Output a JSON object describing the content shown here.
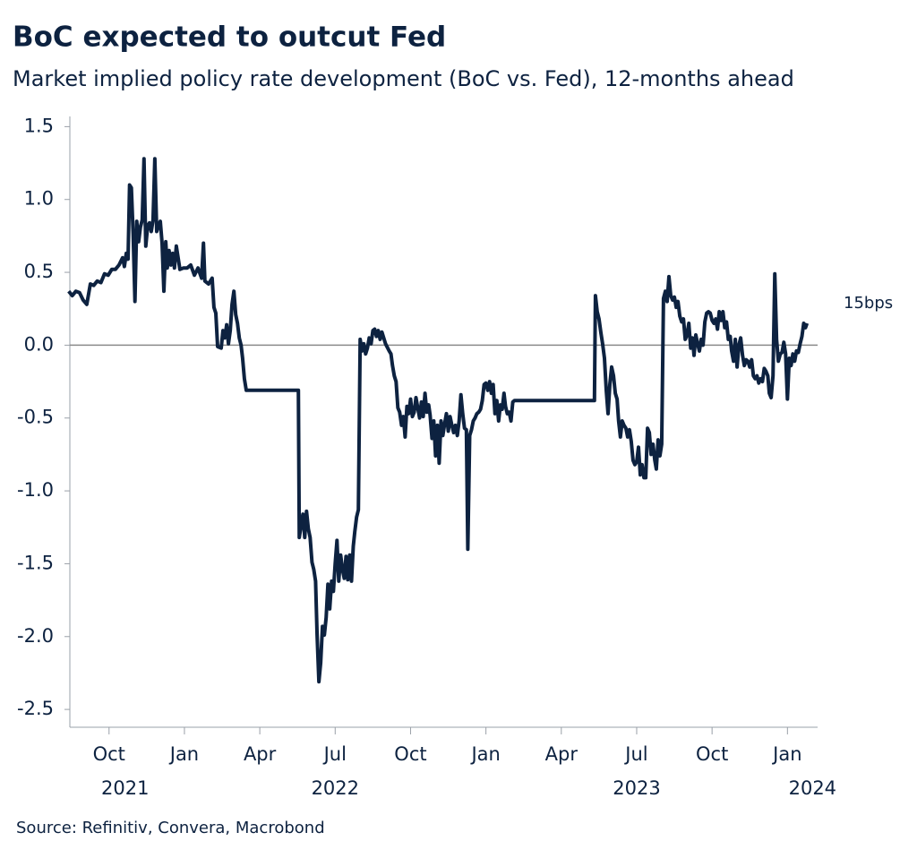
{
  "chart_data": {
    "type": "line",
    "title": "BoC expected to outcut Fed",
    "subtitle": "Market implied policy rate development (BoC vs. Fed), 12-months ahead",
    "source": "Source: Refinitiv, Convera, Macrobond",
    "annotation": "15bps",
    "xlim": [
      2021.62,
      2024.1
    ],
    "ylim": [
      -2.61,
      1.57
    ],
    "xticks": [
      {
        "value": 2021.75,
        "label": "Oct"
      },
      {
        "value": 2022,
        "label": "Jan"
      },
      {
        "value": 2022.25,
        "label": "Apr"
      },
      {
        "value": 2022.5,
        "label": "Jul"
      },
      {
        "value": 2022.75,
        "label": "Oct"
      },
      {
        "value": 2023,
        "label": "Jan"
      },
      {
        "value": 2023.25,
        "label": "Apr"
      },
      {
        "value": 2023.5,
        "label": "Jul"
      },
      {
        "value": 2023.75,
        "label": "Oct"
      },
      {
        "value": 2024,
        "label": "Jan"
      }
    ],
    "xtick_years": [
      {
        "value": 2021.75,
        "label": "2021"
      },
      {
        "value": 2022.5,
        "label": "2022"
      },
      {
        "value": 2023.5,
        "label": "2023"
      },
      {
        "value": 2024,
        "label": "2024"
      }
    ],
    "yticks": [
      1.5,
      {
        "value": 1,
        "label": "1.0"
      },
      0.5,
      {
        "value": 0,
        "label": "0.0"
      },
      -0.5,
      {
        "value": -1,
        "label": "-1.0"
      },
      -1.5,
      {
        "value": -2,
        "label": "-2.0"
      },
      -2.5
    ],
    "zero_line": true,
    "series": [
      {
        "color": "#0d2240",
        "x": [
          2021.616,
          2021.628,
          2021.64,
          2021.652,
          2021.664,
          2021.676,
          2021.688,
          2021.699,
          2021.711,
          2021.723,
          2021.735,
          2021.747,
          2021.759,
          2021.771,
          2021.783,
          2021.795,
          2021.801,
          2021.807,
          2021.813,
          2021.818,
          2021.824,
          2021.83,
          2021.836,
          2021.842,
          2021.848,
          2021.854,
          2021.86,
          2021.866,
          2021.872,
          2021.878,
          2021.884,
          2021.89,
          2021.896,
          2021.902,
          2021.908,
          2021.914,
          2021.92,
          2021.926,
          2021.932,
          2021.938,
          2021.943,
          2021.949,
          2021.955,
          2021.961,
          2021.967,
          2021.973,
          2021.985,
          2021.997,
          2022.009,
          2022.021,
          2022.033,
          2022.045,
          2022.057,
          2022.063,
          2022.068,
          2022.08,
          2022.092,
          2022.098,
          2022.104,
          2022.11,
          2022.122,
          2022.128,
          2022.134,
          2022.14,
          2022.146,
          2022.152,
          2022.158,
          2022.164,
          2022.17,
          2022.176,
          2022.182,
          2022.188,
          2022.193,
          2022.199,
          2022.205,
          2022.378,
          2022.381,
          2022.387,
          2022.393,
          2022.399,
          2022.405,
          2022.411,
          2022.417,
          2022.423,
          2022.429,
          2022.435,
          2022.44,
          2022.446,
          2022.452,
          2022.458,
          2022.464,
          2022.47,
          2022.476,
          2022.482,
          2022.488,
          2022.494,
          2022.5,
          2022.506,
          2022.512,
          2022.518,
          2022.524,
          2022.53,
          2022.536,
          2022.542,
          2022.548,
          2022.554,
          2022.56,
          2022.565,
          2022.571,
          2022.577,
          2022.583,
          2022.589,
          2022.595,
          2022.601,
          2022.607,
          2022.613,
          2022.619,
          2022.625,
          2022.631,
          2022.637,
          2022.643,
          2022.649,
          2022.655,
          2022.667,
          2022.679,
          2022.685,
          2022.69,
          2022.696,
          2022.702,
          2022.708,
          2022.714,
          2022.72,
          2022.726,
          2022.732,
          2022.738,
          2022.744,
          2022.75,
          2022.756,
          2022.762,
          2022.768,
          2022.774,
          2022.78,
          2022.786,
          2022.792,
          2022.798,
          2022.804,
          2022.81,
          2022.815,
          2022.821,
          2022.827,
          2022.833,
          2022.839,
          2022.845,
          2022.851,
          2022.857,
          2022.863,
          2022.869,
          2022.875,
          2022.881,
          2022.887,
          2022.893,
          2022.899,
          2022.905,
          2022.911,
          2022.917,
          2022.923,
          2022.929,
          2022.935,
          2022.94,
          2022.946,
          2022.952,
          2022.958,
          2022.964,
          2022.97,
          2022.976,
          2022.982,
          2022.988,
          2022.994,
          2023.0,
          2023.006,
          2023.012,
          2023.018,
          2023.024,
          2023.03,
          2023.036,
          2023.042,
          2023.048,
          2023.054,
          2023.06,
          2023.065,
          2023.071,
          2023.077,
          2023.083,
          2023.089,
          2023.095,
          2023.36,
          2023.363,
          2023.369,
          2023.375,
          2023.381,
          2023.387,
          2023.393,
          2023.399,
          2023.405,
          2023.411,
          2023.417,
          2023.423,
          2023.429,
          2023.435,
          2023.44,
          2023.446,
          2023.452,
          2023.458,
          2023.464,
          2023.47,
          2023.476,
          2023.482,
          2023.488,
          2023.494,
          2023.5,
          2023.506,
          2023.512,
          2023.518,
          2023.524,
          2023.53,
          2023.536,
          2023.542,
          2023.548,
          2023.554,
          2023.56,
          2023.565,
          2023.571,
          2023.577,
          2023.583,
          2023.589,
          2023.595,
          2023.601,
          2023.607,
          2023.613,
          2023.619,
          2023.625,
          2023.631,
          2023.637,
          2023.643,
          2023.649,
          2023.655,
          2023.661,
          2023.667,
          2023.673,
          2023.679,
          2023.685,
          2023.69,
          2023.696,
          2023.702,
          2023.708,
          2023.714,
          2023.72,
          2023.726,
          2023.732,
          2023.738,
          2023.744,
          2023.75,
          2023.756,
          2023.762,
          2023.768,
          2023.774,
          2023.78,
          2023.786,
          2023.792,
          2023.798,
          2023.804,
          2023.81,
          2023.815,
          2023.821,
          2023.827,
          2023.833,
          2023.839,
          2023.845,
          2023.851,
          2023.857,
          2023.863,
          2023.869,
          2023.875,
          2023.881,
          2023.887,
          2023.893,
          2023.899,
          2023.905,
          2023.911,
          2023.917,
          2023.923,
          2023.929,
          2023.935,
          2023.94,
          2023.946,
          2023.952,
          2023.958,
          2023.964,
          2023.97,
          2023.976,
          2023.982,
          2023.988,
          2023.994,
          2024.0,
          2024.006,
          2024.012,
          2024.018,
          2024.024,
          2024.03,
          2024.036,
          2024.042,
          2024.048,
          2024.054,
          2024.06,
          2024.065
        ],
        "values": [
          0.37,
          0.34,
          0.37,
          0.36,
          0.31,
          0.28,
          0.42,
          0.41,
          0.44,
          0.43,
          0.49,
          0.48,
          0.52,
          0.52,
          0.55,
          0.6,
          0.54,
          0.63,
          0.59,
          1.1,
          1.08,
          0.76,
          0.3,
          0.85,
          0.71,
          0.81,
          0.86,
          1.28,
          0.68,
          0.82,
          0.84,
          0.78,
          0.86,
          1.28,
          0.78,
          0.82,
          0.85,
          0.7,
          0.37,
          0.71,
          0.53,
          0.65,
          0.55,
          0.63,
          0.53,
          0.68,
          0.52,
          0.53,
          0.53,
          0.55,
          0.48,
          0.53,
          0.46,
          0.7,
          0.44,
          0.42,
          0.46,
          0.26,
          0.22,
          -0.01,
          -0.02,
          0.1,
          0.05,
          0.14,
          0.01,
          0.1,
          0.28,
          0.37,
          0.21,
          0.15,
          0.05,
          0,
          -0.09,
          -0.23,
          -0.31,
          -0.31,
          -1.32,
          -1.24,
          -1.16,
          -1.32,
          -1.14,
          -1.26,
          -1.32,
          -1.49,
          -1.54,
          -1.62,
          -1.99,
          -2.31,
          -2.18,
          -1.93,
          -1.99,
          -1.87,
          -1.64,
          -1.81,
          -1.62,
          -1.69,
          -1.5,
          -1.34,
          -1.62,
          -1.44,
          -1.54,
          -1.6,
          -1.45,
          -1.61,
          -1.44,
          -1.62,
          -1.38,
          -1.28,
          -1.18,
          -1.13,
          0.04,
          -0.04,
          0.01,
          -0.06,
          -0.02,
          0.05,
          0.01,
          0.1,
          0.11,
          0.06,
          0.1,
          0.04,
          0.09,
          0.01,
          -0.04,
          -0.06,
          -0.14,
          -0.21,
          -0.25,
          -0.43,
          -0.46,
          -0.55,
          -0.49,
          -0.63,
          -0.42,
          -0.47,
          -0.37,
          -0.49,
          -0.46,
          -0.36,
          -0.43,
          -0.5,
          -0.39,
          -0.49,
          -0.33,
          -0.46,
          -0.41,
          -0.48,
          -0.64,
          -0.52,
          -0.76,
          -0.55,
          -0.81,
          -0.52,
          -0.62,
          -0.54,
          -0.47,
          -0.59,
          -0.49,
          -0.55,
          -0.6,
          -0.55,
          -0.62,
          -0.52,
          -0.34,
          -0.47,
          -0.57,
          -0.58,
          -1.4,
          -0.62,
          -0.58,
          -0.52,
          -0.5,
          -0.47,
          -0.46,
          -0.44,
          -0.38,
          -0.27,
          -0.26,
          -0.31,
          -0.25,
          -0.33,
          -0.27,
          -0.47,
          -0.38,
          -0.52,
          -0.41,
          -0.44,
          -0.33,
          -0.42,
          -0.47,
          -0.46,
          -0.52,
          -0.39,
          -0.38,
          -0.38,
          0.34,
          0.23,
          0.18,
          0.09,
          0.01,
          -0.09,
          -0.31,
          -0.47,
          -0.27,
          -0.15,
          -0.21,
          -0.33,
          -0.37,
          -0.52,
          -0.63,
          -0.52,
          -0.55,
          -0.57,
          -0.63,
          -0.58,
          -0.66,
          -0.79,
          -0.82,
          -0.8,
          -0.7,
          -0.89,
          -0.82,
          -0.91,
          -0.91,
          -0.57,
          -0.6,
          -0.75,
          -0.68,
          -0.79,
          -0.85,
          -0.65,
          -0.76,
          -0.68,
          0.32,
          0.37,
          0.3,
          0.47,
          0.34,
          0.31,
          0.33,
          0.26,
          0.3,
          0.2,
          0.16,
          0.18,
          0.04,
          0.07,
          0.15,
          -0.02,
          0.05,
          -0.07,
          0.07,
          0.01,
          -0.04,
          0.04,
          0,
          0.16,
          0.22,
          0.23,
          0.22,
          0.17,
          0.15,
          0.18,
          0.11,
          0.23,
          0.17,
          0.23,
          0.12,
          0.16,
          0.04,
          0.06,
          -0.04,
          -0.11,
          0.04,
          -0.15,
          0,
          0.05,
          -0.07,
          -0.14,
          -0.1,
          -0.11,
          -0.15,
          -0.1,
          -0.21,
          -0.23,
          -0.21,
          -0.26,
          -0.23,
          -0.25,
          -0.16,
          -0.18,
          -0.21,
          -0.33,
          -0.36,
          -0.21,
          0.49,
          0.04,
          -0.11,
          -0.06,
          -0.05,
          0.02,
          -0.06,
          -0.37,
          -0.09,
          -0.14,
          -0.06,
          -0.11,
          -0.04,
          -0.05,
          0.01,
          0.06,
          0.15,
          0.12,
          0.15
        ]
      }
    ]
  }
}
